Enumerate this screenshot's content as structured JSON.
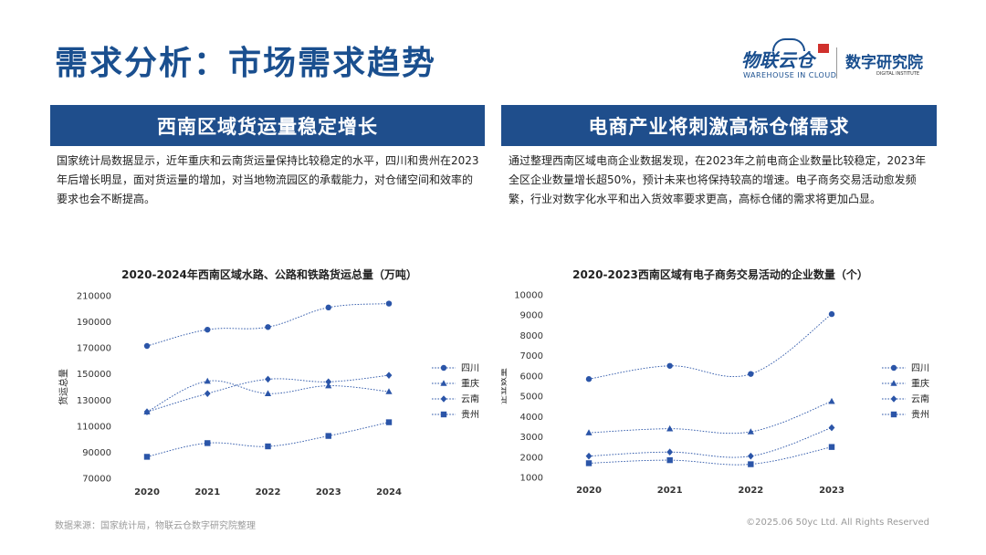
{
  "page": {
    "title": "需求分析：市场需求趋势",
    "footer_source": "数据来源：国家统计局，物联云仓数字研究院整理",
    "footer_copyright": "©2025.06 50yc Ltd. All Rights Reserved"
  },
  "logo": {
    "brand": "物联云仓",
    "brand_sub": "WAREHOUSE IN CLOUD",
    "institute": "数字研究院",
    "institute_sub": "DIGITAL INSTITUTE"
  },
  "left": {
    "banner": "西南区域货运量稳定增长",
    "text": "国家统计局数据显示，近年重庆和云南货运量保持比较稳定的水平，四川和贵州在2023年后增长明显，面对货运量的增加，对当地物流园区的承载能力，对仓储空间和效率的要求也会不断提高。"
  },
  "right": {
    "banner": "电商产业将刺激高标仓储需求",
    "text": "通过整理西南区域电商企业数据发现，在2023年之前电商企业数量比较稳定，2023年全区企业数量增长超50%，预计未来也将保持较高的增速。电子商务交易活动愈发频繁，行业对数字化水平和出入货效率要求更高，高标仓储的需求将更加凸显。"
  },
  "colors": {
    "accent": "#1f4e8c",
    "series": "#2b55a8"
  },
  "chart_data": [
    {
      "type": "line",
      "title": "2020-2024年西南区域水路、公路和铁路货运总量（万吨）",
      "ylabel": "货运总量",
      "xlabel": "",
      "categories": [
        "2020",
        "2021",
        "2022",
        "2023",
        "2024"
      ],
      "ylim": [
        70000,
        210000
      ],
      "yticks": [
        70000,
        90000,
        110000,
        130000,
        150000,
        170000,
        190000,
        210000
      ],
      "grid": false,
      "legend_position": "right",
      "series": [
        {
          "name": "四川",
          "marker": "circle",
          "values": [
            171500,
            184000,
            186000,
            201000,
            204000
          ]
        },
        {
          "name": "重庆",
          "marker": "triangle",
          "values": [
            121000,
            144500,
            135000,
            141000,
            136500
          ]
        },
        {
          "name": "云南",
          "marker": "diamond",
          "values": [
            121000,
            135000,
            146000,
            144000,
            149000
          ]
        },
        {
          "name": "贵州",
          "marker": "square",
          "values": [
            86500,
            97000,
            94500,
            102500,
            113000
          ]
        }
      ]
    },
    {
      "type": "line",
      "title": "2020-2023西南区域有电子商务交易活动的企业数量（个）",
      "ylabel": "企业数量",
      "xlabel": "",
      "categories": [
        "2020",
        "2021",
        "2022",
        "2023"
      ],
      "ylim": [
        1000,
        10000
      ],
      "yticks": [
        1000,
        2000,
        3000,
        4000,
        5000,
        6000,
        7000,
        8000,
        9000,
        10000
      ],
      "grid": false,
      "legend_position": "right",
      "series": [
        {
          "name": "四川",
          "marker": "circle",
          "values": [
            5850,
            6500,
            6100,
            9050
          ]
        },
        {
          "name": "重庆",
          "marker": "triangle",
          "values": [
            3200,
            3400,
            3250,
            4750
          ]
        },
        {
          "name": "云南",
          "marker": "diamond",
          "values": [
            2050,
            2250,
            2050,
            3450
          ]
        },
        {
          "name": "贵州",
          "marker": "square",
          "values": [
            1700,
            1850,
            1650,
            2500
          ]
        }
      ]
    }
  ]
}
